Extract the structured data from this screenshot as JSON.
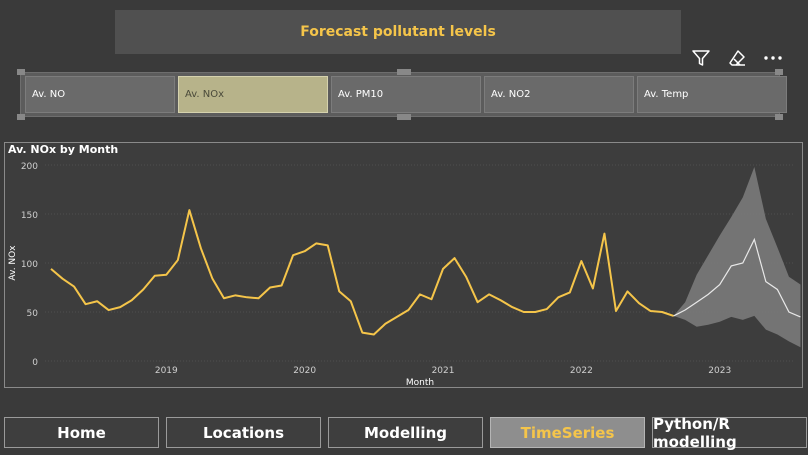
{
  "header": {
    "title": "Forecast pollutant levels"
  },
  "toolbar": [
    {
      "name": "filter-icon"
    },
    {
      "name": "eraser-icon"
    },
    {
      "name": "more-options-icon"
    }
  ],
  "slicer": {
    "options": [
      "Av. NO",
      "Av. NOx",
      "Av. PM10",
      "Av. NO2",
      "Av. Temp"
    ],
    "selected": "Av. NOx"
  },
  "nav": {
    "tabs": [
      "Home",
      "Locations",
      "Modelling",
      "TimeSeries",
      "Python/R modelling"
    ],
    "active": "TimeSeries"
  },
  "colors": {
    "accent": "#f5c54a",
    "forecast_band": "#7a7a7a",
    "forecast_line": "#e8e8e8"
  },
  "chart_data": {
    "type": "line",
    "title": "Av. NOx by Month",
    "xlabel": "Month",
    "ylabel": "Av. NOx",
    "ylim": [
      0,
      200
    ],
    "yticks": [
      0,
      50,
      100,
      150,
      200
    ],
    "x_start": "2018-03",
    "x_ticks": [
      "2019",
      "2020",
      "2021",
      "2022",
      "2023"
    ],
    "grid": true,
    "series": [
      {
        "values": [
          94,
          84,
          76,
          58,
          61,
          52,
          55,
          62,
          73,
          87,
          88,
          103,
          154,
          115,
          84,
          64,
          67,
          65,
          64,
          75,
          77,
          108,
          112,
          120,
          118,
          71,
          61,
          29,
          27,
          38,
          45,
          52,
          68,
          63,
          94,
          105,
          86,
          60,
          68,
          62,
          55,
          50,
          50,
          53,
          65,
          70,
          102,
          74,
          130,
          51,
          71,
          59,
          51,
          50,
          46
        ]
      }
    ],
    "forecast": {
      "start_value": 46,
      "values": [
        52,
        60,
        68,
        78,
        97,
        100,
        124,
        81,
        73,
        50,
        45
      ],
      "lower": [
        42,
        35,
        37,
        40,
        45,
        42,
        46,
        32,
        27,
        20,
        14
      ],
      "upper": [
        60,
        88,
        108,
        128,
        147,
        167,
        198,
        145,
        116,
        86,
        78
      ]
    }
  }
}
